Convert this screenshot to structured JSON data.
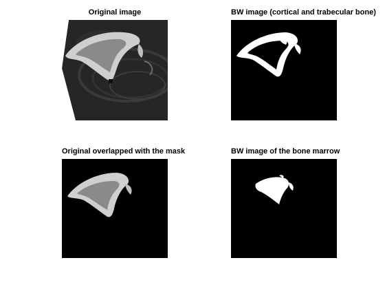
{
  "figure": {
    "panels": [
      {
        "title": "Original image"
      },
      {
        "title": "BW image (cortical and trabecular bone)"
      },
      {
        "title": "Original overlapped with the mask"
      },
      {
        "title": "BW image of the bone marrow"
      }
    ]
  },
  "colors": {
    "figure_background": "#ffffff",
    "image_background": "#000000",
    "mask_white": "#ffffff",
    "cortical_gray": "#cfcfcf",
    "trabecular_gray": "#8a8a8a"
  }
}
